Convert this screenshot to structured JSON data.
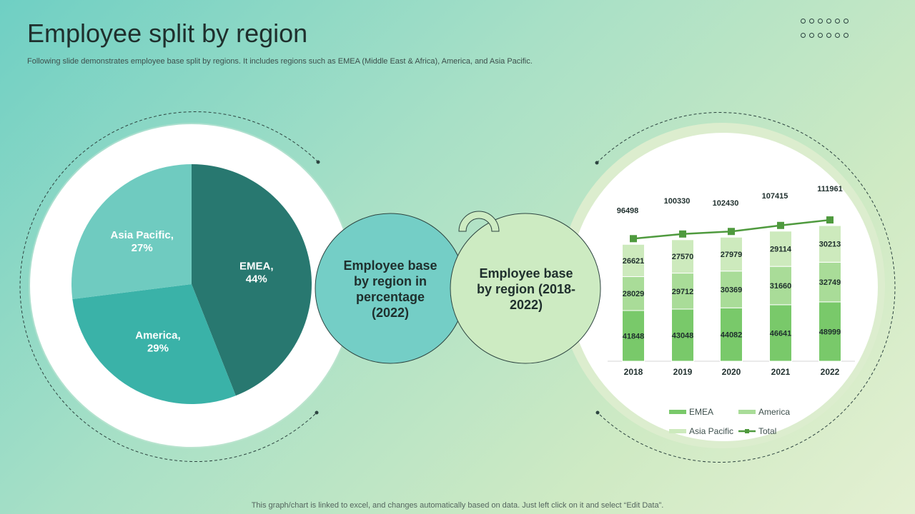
{
  "header": {
    "title": "Employee split by region",
    "subtitle": "Following slide demonstrates employee base split by regions. It includes regions such as EMEA (Middle East & Africa), America, and Asia Pacific."
  },
  "footer": {
    "note": "This graph/chart is linked to excel,  and changes automatically based on data. Just left click on it and select “Edit Data”."
  },
  "center": {
    "left_label": "Employee base by region in percentage (2022)",
    "right_label": "Employee base by region (2018- 2022)"
  },
  "colors": {
    "emea_pie": "#287870",
    "america_pie": "#3ab2a8",
    "asia_pie": "#6fcbc0",
    "emea_bar": "#79c96a",
    "america_bar": "#a9dc98",
    "asia_bar": "#cdeabd",
    "total_line": "#4f9a3e"
  },
  "chart_data": [
    {
      "type": "pie",
      "slices": [
        {
          "label": "EMEA,",
          "value_label": "44%",
          "value": 44
        },
        {
          "label": "America,",
          "value_label": "29%",
          "value": 29
        },
        {
          "label": "Asia Pacific,",
          "value_label": "27%",
          "value": 27
        }
      ]
    },
    {
      "type": "bar",
      "stacked": true,
      "categories": [
        "2018",
        "2019",
        "2020",
        "2021",
        "2022"
      ],
      "series": [
        {
          "name": "EMEA",
          "values": [
            41848,
            43048,
            44082,
            46641,
            48999
          ]
        },
        {
          "name": "America",
          "values": [
            28029,
            29712,
            30369,
            31660,
            32749
          ]
        },
        {
          "name": "Asia Pacific",
          "values": [
            26621,
            27570,
            27979,
            29114,
            30213
          ]
        }
      ],
      "line_series": {
        "name": "Total",
        "values": [
          96498,
          100330,
          102430,
          107415,
          111961
        ]
      },
      "legend": [
        "EMEA",
        "America",
        "Asia Pacific",
        "Total"
      ],
      "legend_position": "bottom"
    }
  ]
}
